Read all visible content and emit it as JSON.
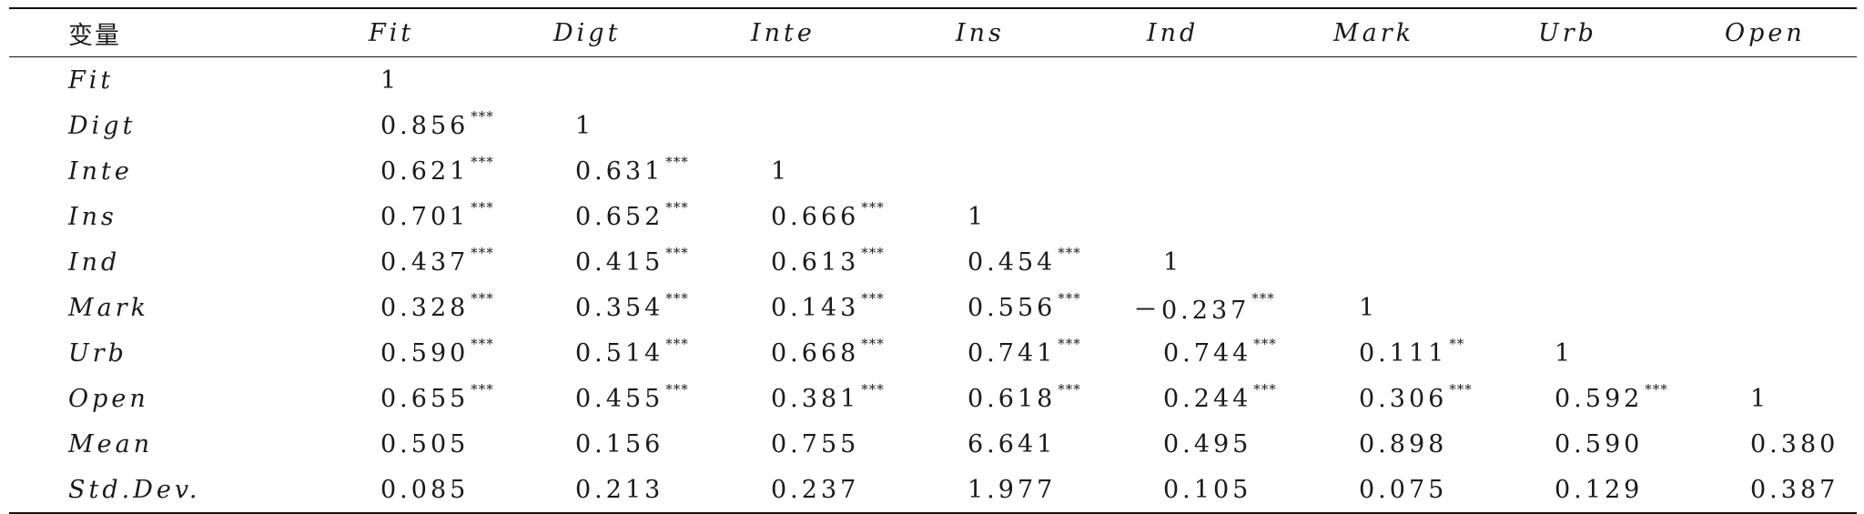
{
  "table": {
    "header": [
      "变量",
      "Fit",
      "Digt",
      "Inte",
      "Ins",
      "Ind",
      "Mark",
      "Urb",
      "Open"
    ],
    "rows": [
      {
        "name": "Fit",
        "cells": [
          {
            "v": "1",
            "s": ""
          }
        ]
      },
      {
        "name": "Digt",
        "cells": [
          {
            "v": "0.856",
            "s": "***"
          },
          {
            "v": "1",
            "s": ""
          }
        ]
      },
      {
        "name": "Inte",
        "cells": [
          {
            "v": "0.621",
            "s": "***"
          },
          {
            "v": "0.631",
            "s": "***"
          },
          {
            "v": "1",
            "s": ""
          }
        ]
      },
      {
        "name": "Ins",
        "cells": [
          {
            "v": "0.701",
            "s": "***"
          },
          {
            "v": "0.652",
            "s": "***"
          },
          {
            "v": "0.666",
            "s": "***"
          },
          {
            "v": "1",
            "s": ""
          }
        ]
      },
      {
        "name": "Ind",
        "cells": [
          {
            "v": "0.437",
            "s": "***"
          },
          {
            "v": "0.415",
            "s": "***"
          },
          {
            "v": "0.613",
            "s": "***"
          },
          {
            "v": "0.454",
            "s": "***"
          },
          {
            "v": "1",
            "s": ""
          }
        ]
      },
      {
        "name": "Mark",
        "cells": [
          {
            "v": "0.328",
            "s": "***"
          },
          {
            "v": "0.354",
            "s": "***"
          },
          {
            "v": "0.143",
            "s": "***"
          },
          {
            "v": "0.556",
            "s": "***"
          },
          {
            "v": "－0.237",
            "s": "***"
          },
          {
            "v": "1",
            "s": ""
          }
        ]
      },
      {
        "name": "Urb",
        "cells": [
          {
            "v": "0.590",
            "s": "***"
          },
          {
            "v": "0.514",
            "s": "***"
          },
          {
            "v": "0.668",
            "s": "***"
          },
          {
            "v": "0.741",
            "s": "***"
          },
          {
            "v": "0.744",
            "s": "***"
          },
          {
            "v": "0.111",
            "s": "**"
          },
          {
            "v": "1",
            "s": ""
          }
        ]
      },
      {
        "name": "Open",
        "cells": [
          {
            "v": "0.655",
            "s": "***"
          },
          {
            "v": "0.455",
            "s": "***"
          },
          {
            "v": "0.381",
            "s": "***"
          },
          {
            "v": "0.618",
            "s": "***"
          },
          {
            "v": "0.244",
            "s": "***"
          },
          {
            "v": "0.306",
            "s": "***"
          },
          {
            "v": "0.592",
            "s": "***"
          },
          {
            "v": "1",
            "s": ""
          }
        ]
      },
      {
        "name": "Mean",
        "cells": [
          {
            "v": "0.505",
            "s": ""
          },
          {
            "v": "0.156",
            "s": ""
          },
          {
            "v": "0.755",
            "s": ""
          },
          {
            "v": "6.641",
            "s": ""
          },
          {
            "v": "0.495",
            "s": ""
          },
          {
            "v": "0.898",
            "s": ""
          },
          {
            "v": "0.590",
            "s": ""
          },
          {
            "v": "0.380",
            "s": ""
          }
        ]
      },
      {
        "name": "Std.Dev.",
        "cells": [
          {
            "v": "0.085",
            "s": ""
          },
          {
            "v": "0.213",
            "s": ""
          },
          {
            "v": "0.237",
            "s": ""
          },
          {
            "v": "1.977",
            "s": ""
          },
          {
            "v": "0.105",
            "s": ""
          },
          {
            "v": "0.075",
            "s": ""
          },
          {
            "v": "0.129",
            "s": ""
          },
          {
            "v": "0.387",
            "s": ""
          }
        ]
      }
    ]
  }
}
